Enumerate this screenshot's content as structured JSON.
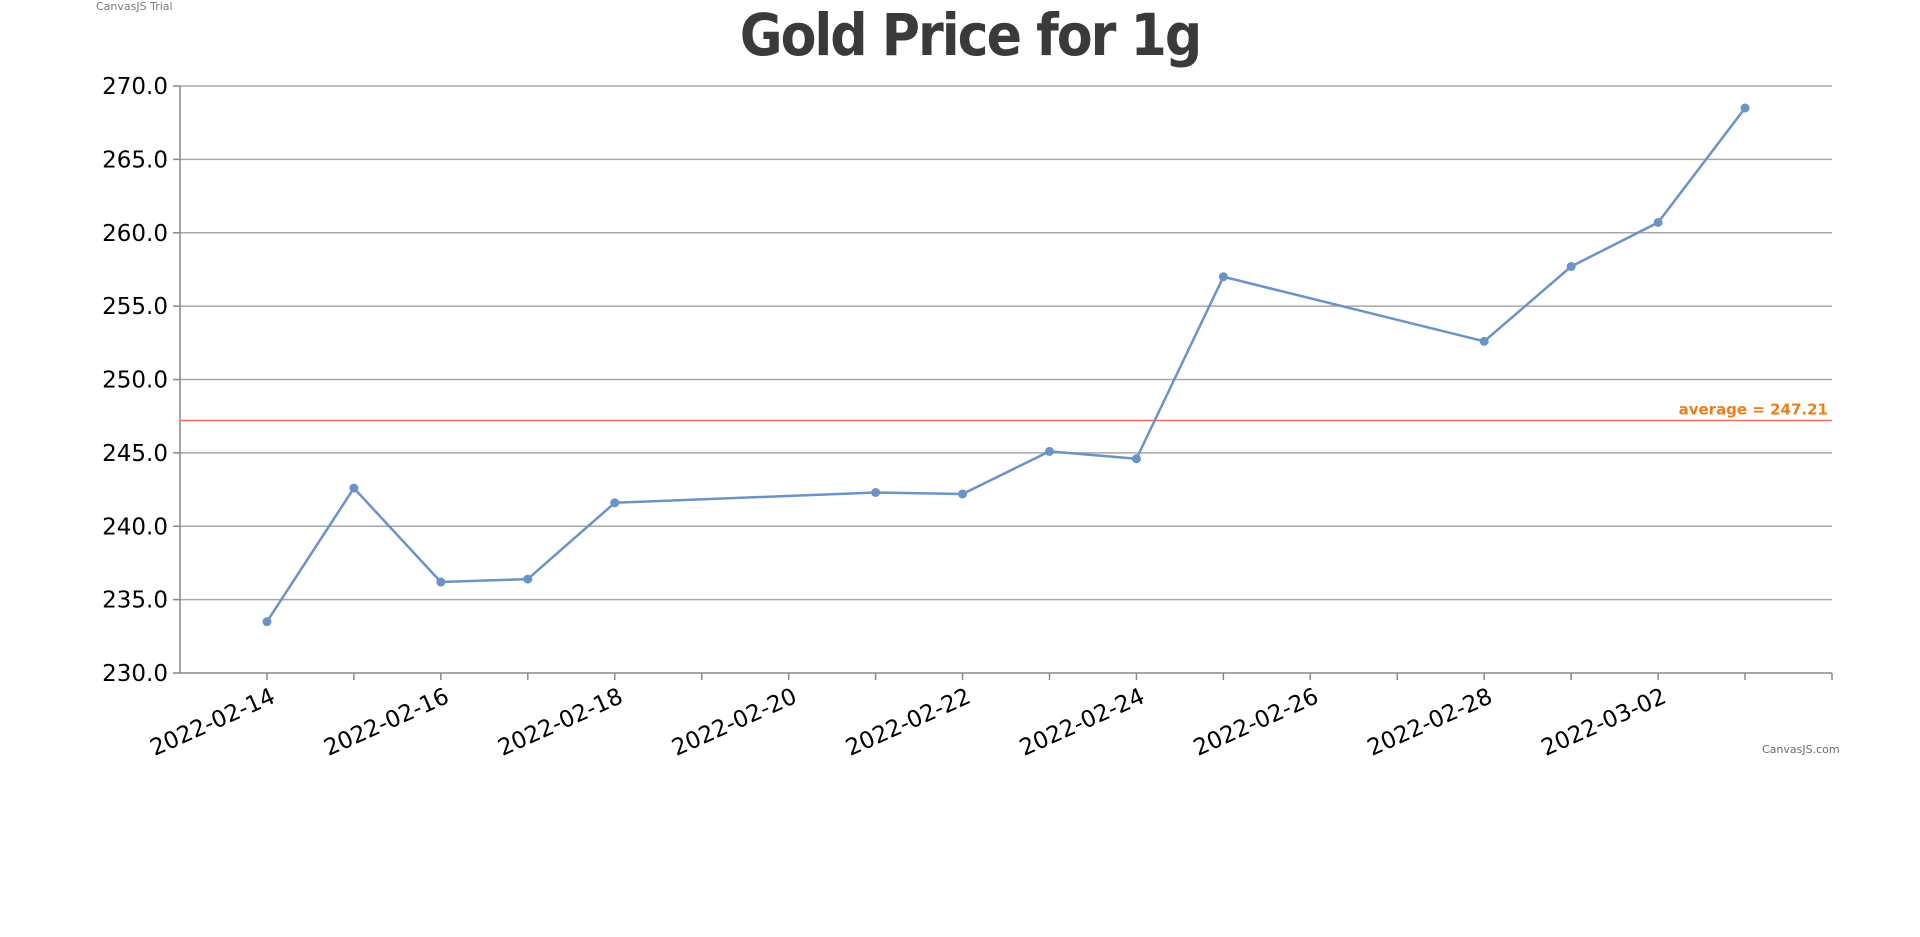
{
  "watermark": {
    "trial": "CanvasJS Trial",
    "credit": "CanvasJS.com"
  },
  "chart_data": {
    "type": "line",
    "title": "Gold Price for 1g",
    "xlabel": "",
    "ylabel": "",
    "ylim": [
      230,
      270
    ],
    "yticks": [
      "230.0",
      "235.0",
      "240.0",
      "245.0",
      "250.0",
      "255.0",
      "260.0",
      "265.0",
      "270.0"
    ],
    "xlim": [
      "2022-02-13",
      "2022-03-04"
    ],
    "xticks": [
      "2022-02-14",
      "2022-02-16",
      "2022-02-18",
      "2022-02-20",
      "2022-02-22",
      "2022-02-24",
      "2022-02-26",
      "2022-02-28",
      "2022-03-02"
    ],
    "grid": true,
    "series": [
      {
        "color": "#6b93c8",
        "points": [
          {
            "x": "2022-02-14",
            "y": 233.5
          },
          {
            "x": "2022-02-15",
            "y": 242.6
          },
          {
            "x": "2022-02-16",
            "y": 236.2
          },
          {
            "x": "2022-02-17",
            "y": 236.4
          },
          {
            "x": "2022-02-18",
            "y": 241.6
          },
          {
            "x": "2022-02-21",
            "y": 242.3
          },
          {
            "x": "2022-02-22",
            "y": 242.2
          },
          {
            "x": "2022-02-23",
            "y": 245.1
          },
          {
            "x": "2022-02-24",
            "y": 244.6
          },
          {
            "x": "2022-02-25",
            "y": 257.0
          },
          {
            "x": "2022-02-28",
            "y": 252.6
          },
          {
            "x": "2022-03-01",
            "y": 257.7
          },
          {
            "x": "2022-03-02",
            "y": 260.7
          },
          {
            "x": "2022-03-03",
            "y": 268.5
          }
        ]
      }
    ],
    "stripline": {
      "value": 247.21,
      "label": "average = 247.21",
      "line_color": "#f26b5b",
      "label_color": "#f07d1a"
    }
  }
}
